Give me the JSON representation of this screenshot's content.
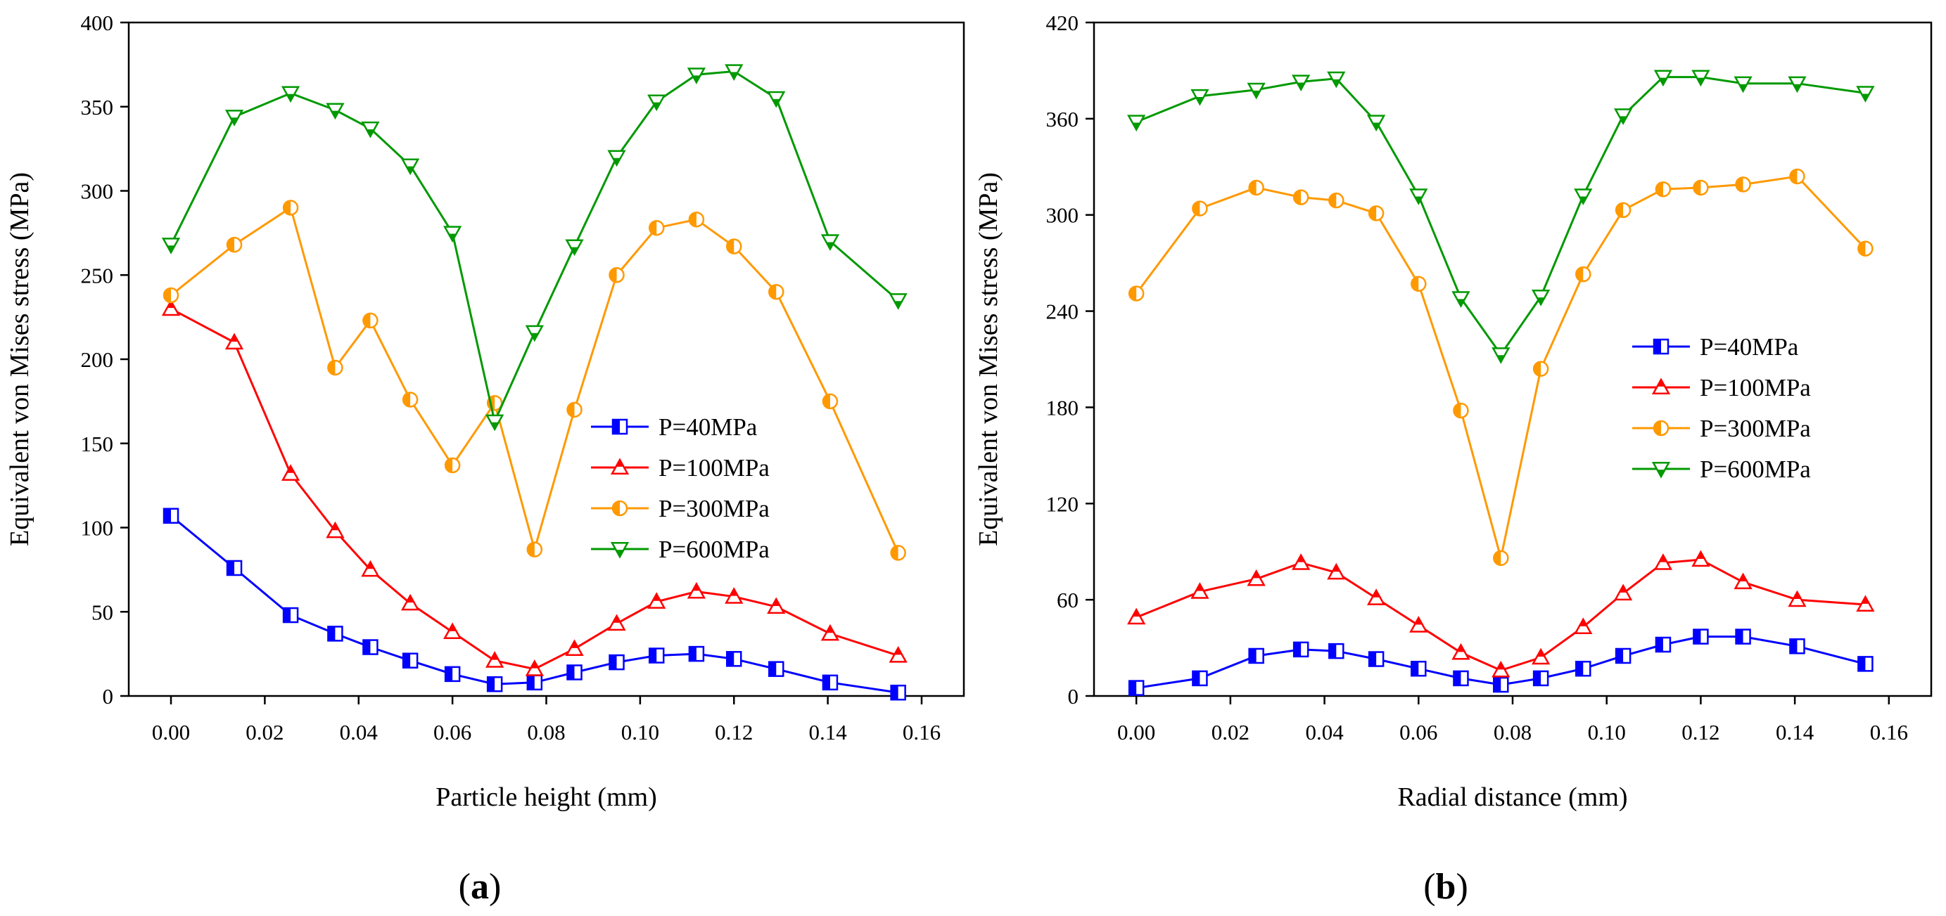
{
  "chart_data": [
    {
      "type": "line",
      "panel_label": {
        "open": "(",
        "letter": "a",
        "close": ")"
      },
      "xlabel": "Particle height (mm)",
      "ylabel": "Equivalent von Mises stress (MPa)",
      "xlim": [
        -0.009,
        0.169
      ],
      "ylim": [
        0,
        400
      ],
      "xticks": [
        0.0,
        0.02,
        0.04,
        0.06,
        0.08,
        0.1,
        0.12,
        0.14,
        0.16
      ],
      "xtick_labels": [
        "0.00",
        "0.02",
        "0.04",
        "0.06",
        "0.08",
        "0.10",
        "0.12",
        "0.14",
        "0.16"
      ],
      "yticks": [
        0,
        50,
        100,
        150,
        200,
        250,
        300,
        350,
        400
      ],
      "ytick_labels": [
        "0",
        "50",
        "100",
        "150",
        "200",
        "250",
        "300",
        "350",
        "400"
      ],
      "legend_position": "center-right",
      "x": [
        0.0,
        0.0135,
        0.0255,
        0.035,
        0.0425,
        0.051,
        0.06,
        0.069,
        0.0775,
        0.086,
        0.095,
        0.1035,
        0.112,
        0.12,
        0.129,
        0.1405,
        0.155
      ],
      "series": [
        {
          "name": "P=40MPa",
          "color": "#0000ff",
          "marker": "square",
          "values": [
            107,
            76,
            48,
            37,
            29,
            21,
            13,
            7,
            8,
            14,
            20,
            24,
            25,
            22,
            16,
            8,
            2
          ]
        },
        {
          "name": "P=100MPa",
          "color": "#ff0000",
          "marker": "triangle-up",
          "values": [
            230,
            210,
            132,
            98,
            75,
            55,
            38,
            21,
            16,
            28,
            43,
            56,
            62,
            59,
            53,
            37,
            24
          ]
        },
        {
          "name": "P=300MPa",
          "color": "#ff9900",
          "marker": "circle",
          "values": [
            238,
            268,
            290,
            195,
            223,
            176,
            137,
            174,
            87,
            170,
            250,
            278,
            283,
            267,
            240,
            175,
            85
          ]
        },
        {
          "name": "P=600MPa",
          "color": "#009900",
          "marker": "triangle-down",
          "values": [
            268,
            344,
            358,
            348,
            337,
            315,
            275,
            163,
            216,
            267,
            320,
            353,
            369,
            371,
            355,
            270,
            235
          ]
        }
      ]
    },
    {
      "type": "line",
      "panel_label": {
        "open": "(",
        "letter": "b",
        "close": ")"
      },
      "xlabel": "Radial distance (mm)",
      "ylabel": "Equivalent von Mises stress (MPa)",
      "xlim": [
        -0.009,
        0.169
      ],
      "ylim": [
        0,
        420
      ],
      "xticks": [
        0.0,
        0.02,
        0.04,
        0.06,
        0.08,
        0.1,
        0.12,
        0.14,
        0.16
      ],
      "xtick_labels": [
        "0.00",
        "0.02",
        "0.04",
        "0.06",
        "0.08",
        "0.10",
        "0.12",
        "0.14",
        "0.16"
      ],
      "yticks": [
        0,
        60,
        120,
        180,
        240,
        300,
        360,
        420
      ],
      "ytick_labels": [
        "0",
        "60",
        "120",
        "180",
        "240",
        "300",
        "360",
        "420"
      ],
      "legend_position": "right",
      "x": [
        0.0,
        0.0135,
        0.0255,
        0.035,
        0.0425,
        0.051,
        0.06,
        0.069,
        0.0775,
        0.086,
        0.095,
        0.1035,
        0.112,
        0.12,
        0.129,
        0.1405,
        0.155
      ],
      "series": [
        {
          "name": "P=40MPa",
          "color": "#0000ff",
          "marker": "square",
          "values": [
            5,
            11,
            25,
            29,
            28,
            23,
            17,
            11,
            7,
            11,
            17,
            25,
            32,
            37,
            37,
            31,
            20
          ]
        },
        {
          "name": "P=100MPa",
          "color": "#ff0000",
          "marker": "triangle-up",
          "values": [
            49,
            65,
            73,
            83,
            77,
            61,
            44,
            27,
            16,
            24,
            43,
            64,
            83,
            85,
            71,
            60,
            57
          ]
        },
        {
          "name": "P=300MPa",
          "color": "#ff9900",
          "marker": "circle",
          "values": [
            251,
            304,
            317,
            311,
            309,
            301,
            257,
            178,
            86,
            204,
            263,
            303,
            316,
            317,
            319,
            324,
            279
          ]
        },
        {
          "name": "P=600MPa",
          "color": "#009900",
          "marker": "triangle-down",
          "values": [
            358,
            374,
            378,
            383,
            385,
            358,
            312,
            248,
            213,
            249,
            312,
            362,
            386,
            386,
            382,
            382,
            376
          ]
        }
      ]
    }
  ]
}
